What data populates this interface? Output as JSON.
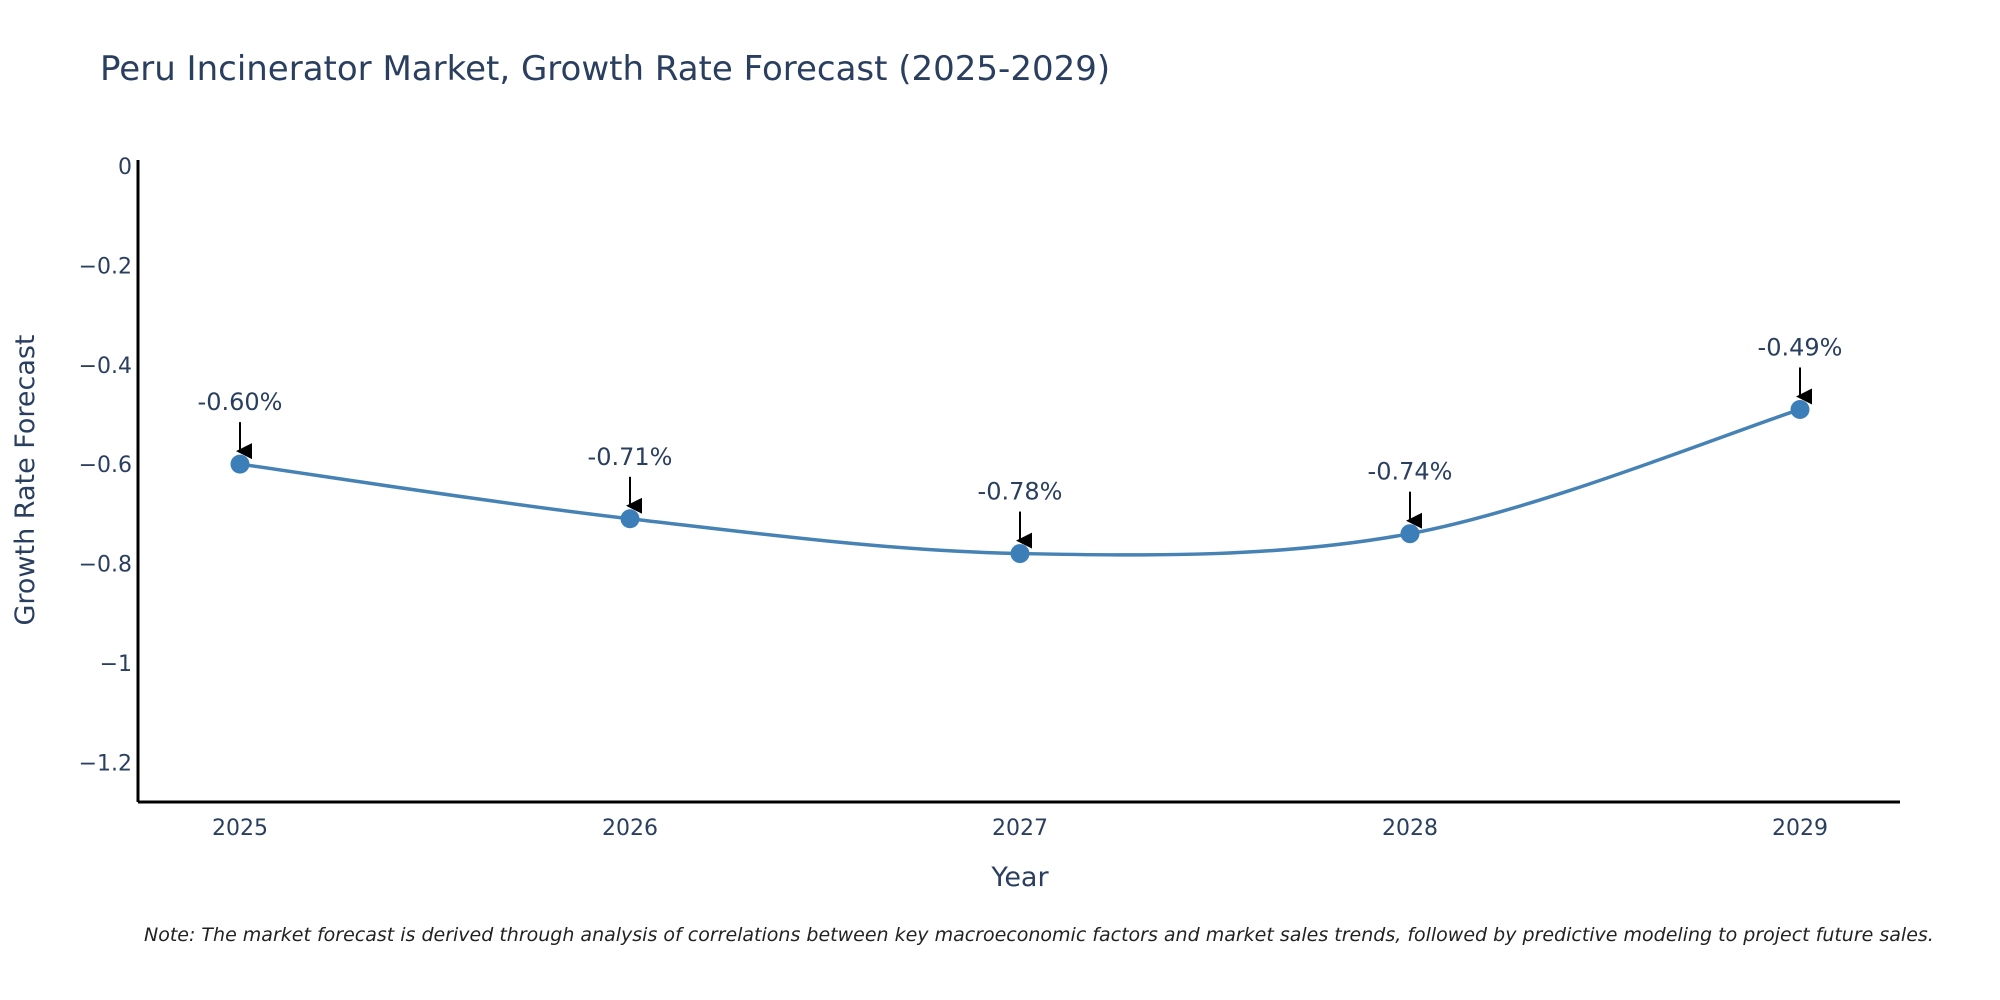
{
  "chart_data": {
    "type": "line",
    "title": "Peru Incinerator Market, Growth Rate Forecast (2025-2029)",
    "xlabel": "Year",
    "ylabel": "Growth Rate Forecast",
    "categories": [
      "2025",
      "2026",
      "2027",
      "2028",
      "2029"
    ],
    "series": [
      {
        "name": "Growth Rate Forecast",
        "values": [
          -0.6,
          -0.71,
          -0.78,
          -0.74,
          -0.49
        ],
        "labels": [
          "-0.60%",
          "-0.71%",
          "-0.78%",
          "-0.74%",
          "-0.49%"
        ]
      }
    ],
    "ylim": [
      -1.28,
      0
    ],
    "yticks": [
      0,
      -0.2,
      -0.4,
      -0.6,
      -0.8,
      -1,
      -1.2
    ],
    "ytick_labels": [
      "0",
      "−0.2",
      "−0.4",
      "−0.6",
      "−0.8",
      "−1",
      "−1.2"
    ],
    "grid": false,
    "line_shape": "spline",
    "colors": {
      "line": "#4682b4",
      "marker": "#3c7fb8",
      "axis": "#000000",
      "text": "#2a3f5f",
      "arrow": "#000000"
    },
    "note": "Note: The market forecast is derived through analysis of correlations between key macroeconomic factors and market sales trends, followed by predictive modeling to project future sales."
  }
}
